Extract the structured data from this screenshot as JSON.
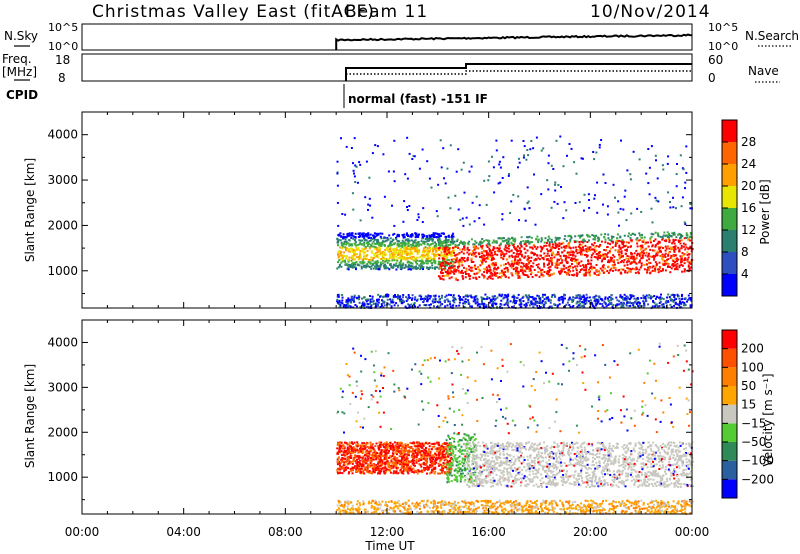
{
  "header": {
    "title": "Christmas Valley East (fitACF)",
    "beam": "Beam 11",
    "date": "10/Nov/2014"
  },
  "top_panels": {
    "nsky_label": "N.Sky",
    "nsky_ticks": [
      "10^5",
      "10^0"
    ],
    "nsearch_label": "N.Search",
    "nsearch_ticks": [
      "10^5",
      "10^0"
    ],
    "freq_label_1": "Freq.",
    "freq_label_2": "[MHz]",
    "freq_ticks": [
      "18",
      "8"
    ],
    "nave_label": "Nave",
    "nave_ticks": [
      "60",
      "0"
    ],
    "cpid_label": "CPID",
    "cpid_text": "normal (fast) -151 IF"
  },
  "colors": {
    "power": [
      "#0000ff",
      "#2e4fbf",
      "#2a7f6e",
      "#3faa3f",
      "#e6e600",
      "#ffa000",
      "#ff6600",
      "#ff0000"
    ],
    "velocity": [
      "#0000ff",
      "#2a5fa0",
      "#2e8b57",
      "#55cc33",
      "#c8c8c0",
      "#ffa500",
      "#ff8000",
      "#ff5000",
      "#ff0000"
    ]
  },
  "chart_data": [
    {
      "type": "heatmap",
      "title": "",
      "xlabel": "Time UT",
      "ylabel": "Slant Range [km]",
      "xlim": [
        "00:00",
        "24:00"
      ],
      "ylim": [
        180,
        4500
      ],
      "x_ticks": [
        "00:00",
        "04:00",
        "08:00",
        "12:00",
        "16:00",
        "20:00",
        "00:00"
      ],
      "y_ticks": [
        1000,
        2000,
        3000,
        4000
      ],
      "colorbar": {
        "label": "Power [dB]",
        "ticks": [
          4,
          8,
          12,
          16,
          20,
          24,
          28
        ],
        "range": [
          0,
          32
        ]
      },
      "data_start": "10:00"
    },
    {
      "type": "heatmap",
      "title": "",
      "xlabel": "Time UT",
      "ylabel": "Slant Range [km]",
      "xlim": [
        "00:00",
        "24:00"
      ],
      "ylim": [
        180,
        4500
      ],
      "x_ticks": [
        "00:00",
        "04:00",
        "08:00",
        "12:00",
        "16:00",
        "20:00",
        "00:00"
      ],
      "y_ticks": [
        1000,
        2000,
        3000,
        4000
      ],
      "colorbar": {
        "label": "Velocity [m s⁻¹]",
        "ticks": [
          200,
          100,
          50,
          15,
          -15,
          -50,
          -100,
          -200
        ]
      },
      "data_start": "10:00"
    }
  ]
}
